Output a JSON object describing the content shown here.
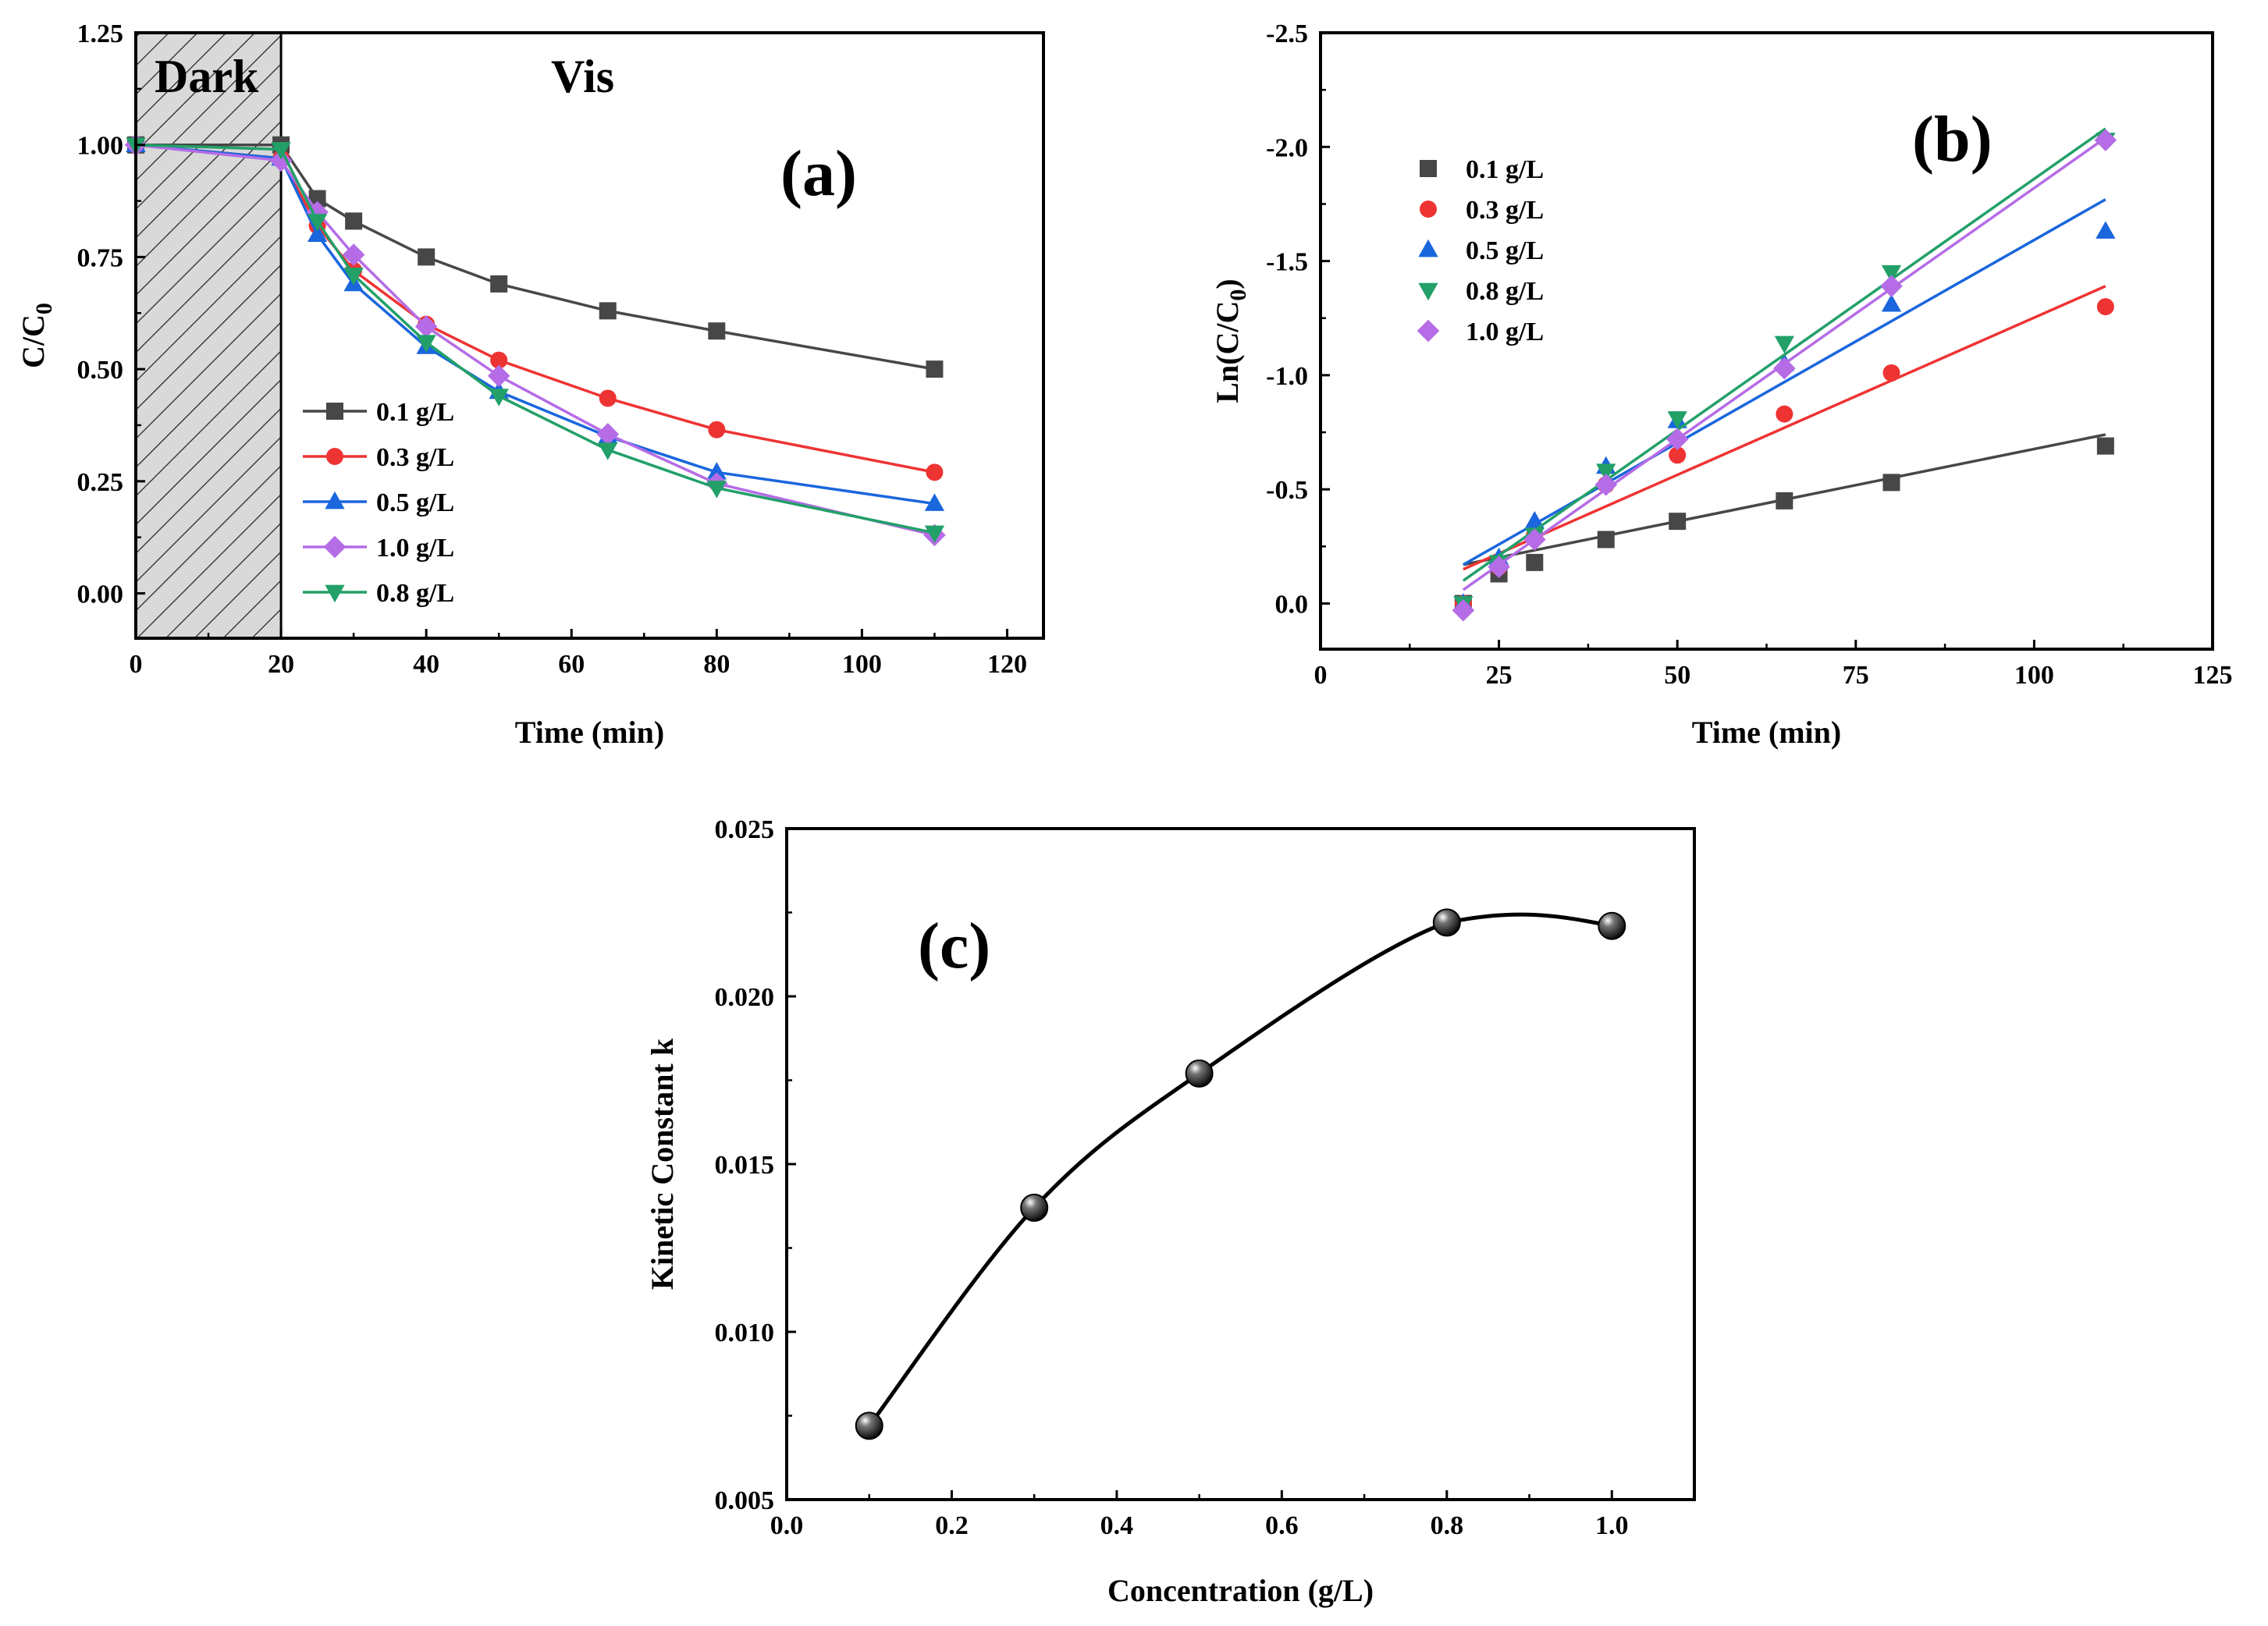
{
  "chart_data": [
    {
      "id": "a",
      "type": "line",
      "panel_label": "(a)",
      "xlabel": "Time (min)",
      "ylabel": "C/C0",
      "xlim": [
        0,
        125
      ],
      "ylim": [
        -0.1,
        1.25
      ],
      "xticks": [
        0,
        20,
        40,
        60,
        80,
        100,
        120
      ],
      "yticks": [
        0.0,
        0.25,
        0.5,
        0.75,
        1.0,
        1.25
      ],
      "regions": [
        {
          "label": "Dark",
          "from": 0,
          "to": 20,
          "hatched": true
        },
        {
          "label": "Vis",
          "from": 20,
          "to": 125,
          "hatched": false
        }
      ],
      "x": [
        0,
        20,
        25,
        30,
        40,
        50,
        65,
        80,
        110
      ],
      "legend_position": "bottom-left",
      "series": [
        {
          "name": "0.1 g/L",
          "color": "#474747",
          "marker": "square",
          "values": [
            1.0,
            1.0,
            0.88,
            0.83,
            0.75,
            0.69,
            0.63,
            0.585,
            0.5
          ]
        },
        {
          "name": "0.3 g/L",
          "color": "#ee3333",
          "marker": "circle",
          "values": [
            1.0,
            0.97,
            0.82,
            0.72,
            0.6,
            0.52,
            0.435,
            0.365,
            0.27
          ]
        },
        {
          "name": "0.5 g/L",
          "color": "#1a66dd",
          "marker": "triangle-up",
          "values": [
            1.0,
            0.97,
            0.8,
            0.69,
            0.55,
            0.45,
            0.35,
            0.27,
            0.2
          ]
        },
        {
          "name": "1.0 g/L",
          "color": "#b56ce6",
          "marker": "diamond",
          "values": [
            1.0,
            0.965,
            0.85,
            0.755,
            0.595,
            0.485,
            0.355,
            0.245,
            0.13
          ]
        },
        {
          "name": "0.8 g/L",
          "color": "#22a068",
          "marker": "triangle-down",
          "values": [
            1.0,
            0.99,
            0.83,
            0.71,
            0.56,
            0.44,
            0.32,
            0.235,
            0.135
          ]
        }
      ]
    },
    {
      "id": "b",
      "type": "scatter",
      "panel_label": "(b)",
      "xlabel": "Time (min)",
      "ylabel": "Ln(C/C0)",
      "xlim": [
        0,
        125
      ],
      "ylim": [
        0.2,
        -2.5
      ],
      "y_inverted": true,
      "xticks": [
        0,
        25,
        50,
        75,
        100,
        125
      ],
      "yticks": [
        0.0,
        -0.5,
        -1.0,
        -1.5,
        -2.0,
        -2.5
      ],
      "x": [
        20,
        25,
        30,
        40,
        50,
        65,
        80,
        110
      ],
      "legend_position": "top-left",
      "series": [
        {
          "name": "0.1 g/L",
          "color": "#474747",
          "marker": "square",
          "values": [
            0.0,
            -0.13,
            -0.18,
            -0.28,
            -0.36,
            -0.45,
            -0.53,
            -0.69
          ],
          "fit": {
            "x": [
              20,
              110
            ],
            "y": [
              -0.17,
              -0.74
            ]
          }
        },
        {
          "name": "0.3 g/L",
          "color": "#ee3333",
          "marker": "circle",
          "values": [
            0.0,
            -0.16,
            -0.3,
            -0.52,
            -0.65,
            -0.83,
            -1.01,
            -1.3
          ],
          "fit": {
            "x": [
              20,
              110
            ],
            "y": [
              -0.15,
              -1.39
            ]
          }
        },
        {
          "name": "0.5 g/L",
          "color": "#1a66dd",
          "marker": "triangle-up",
          "values": [
            0.0,
            -0.2,
            -0.36,
            -0.6,
            -0.8,
            -1.05,
            -1.31,
            -1.63
          ],
          "fit": {
            "x": [
              20,
              110
            ],
            "y": [
              -0.17,
              -1.77
            ]
          }
        },
        {
          "name": "0.8 g/L",
          "color": "#22a068",
          "marker": "triangle-down",
          "values": [
            0.0,
            -0.18,
            -0.3,
            -0.58,
            -0.81,
            -1.14,
            -1.45,
            -2.03
          ],
          "fit": {
            "x": [
              20,
              110
            ],
            "y": [
              -0.1,
              -2.08
            ]
          }
        },
        {
          "name": "1.0 g/L",
          "color": "#b56ce6",
          "marker": "diamond",
          "values": [
            0.03,
            -0.16,
            -0.28,
            -0.52,
            -0.72,
            -1.03,
            -1.39,
            -2.03
          ],
          "fit": {
            "x": [
              20,
              110
            ],
            "y": [
              -0.06,
              -2.04
            ]
          }
        }
      ]
    },
    {
      "id": "c",
      "type": "line",
      "panel_label": "(c)",
      "xlabel": "Concentration (g/L)",
      "ylabel": "Kinetic Constant k",
      "xlim": [
        0.0,
        1.1
      ],
      "ylim": [
        0.005,
        0.025
      ],
      "xticks": [
        0.0,
        0.2,
        0.4,
        0.6,
        0.8,
        1.0
      ],
      "yticks": [
        0.005,
        0.01,
        0.015,
        0.02,
        0.025
      ],
      "x": [
        0.1,
        0.3,
        0.5,
        0.8,
        1.0
      ],
      "series": [
        {
          "name": "k",
          "color": "#000000",
          "marker": "sphere",
          "values": [
            0.0072,
            0.0137,
            0.0177,
            0.0222,
            0.0221
          ]
        }
      ]
    }
  ]
}
